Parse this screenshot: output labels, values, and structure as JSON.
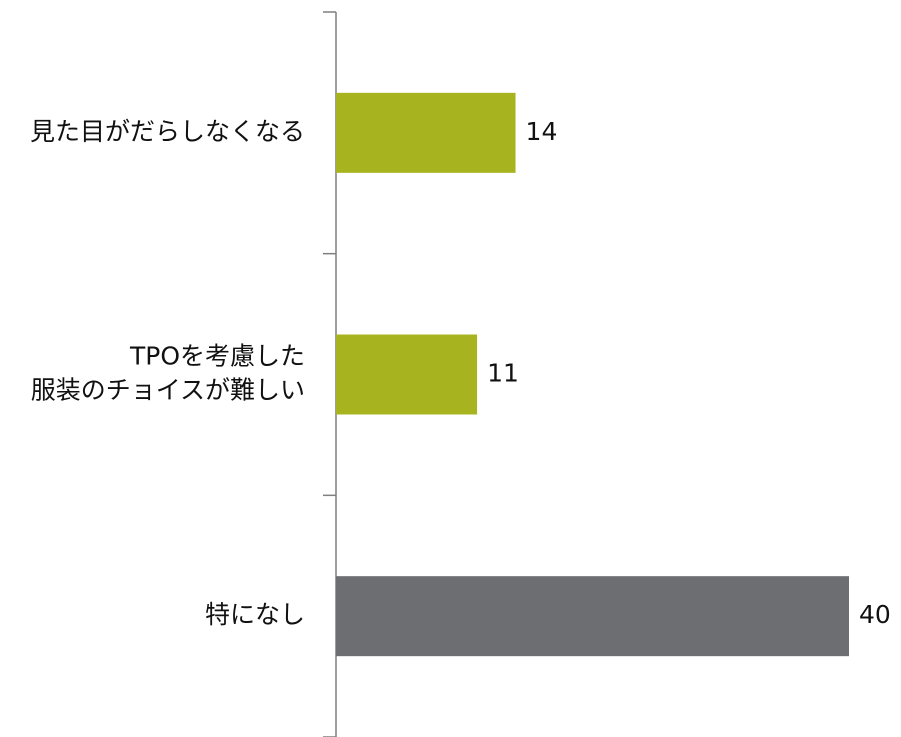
{
  "chart_data": {
    "type": "barh",
    "categories": [
      "見た目がだらしなくなる",
      "TPOを考慮した\n服装のチョイスが難しい",
      "特になし"
    ],
    "values": [
      14,
      11,
      40
    ],
    "colors": [
      "#a8b41f",
      "#a8b41f",
      "#6d6e71"
    ],
    "xlim": [
      0,
      40
    ]
  }
}
